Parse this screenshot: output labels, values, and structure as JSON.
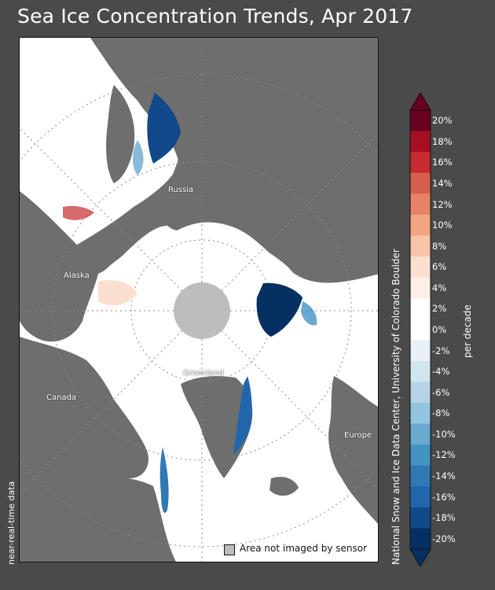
{
  "title": "Sea Ice Concentration Trends, Apr 2017",
  "credit": "National Snow and Ice Data Center, University of Colorado Boulder",
  "data_status": "near-real-time data",
  "map": {
    "labels": [
      "Russia",
      "Alaska",
      "Canada",
      "Greenland",
      "Europe"
    ],
    "legend_label": "Area not imaged by sensor",
    "colors": {
      "land": "#6e6e6e",
      "ice_no_change": "#ffffff",
      "pole_hole": "#bdbdbd",
      "graticule": "#888888"
    }
  },
  "colorbar": {
    "unit": "per decade",
    "tick_labels": [
      "20%",
      "18%",
      "16%",
      "14%",
      "12%",
      "10%",
      "8%",
      "6%",
      "4%",
      "2%",
      "0%",
      "-2%",
      "-4%",
      "-6%",
      "-8%",
      "-10%",
      "-12%",
      "-14%",
      "-16%",
      "-18%",
      "-20%"
    ],
    "colors": [
      "#67001f",
      "#a50f22",
      "#c62b2d",
      "#d6604d",
      "#e58267",
      "#f1a583",
      "#f7c4a8",
      "#fbdfd0",
      "#fdeee6",
      "#ffffff",
      "#ffffff",
      "#e8f1f8",
      "#d1e5f0",
      "#b5d4e9",
      "#92c5de",
      "#6aa9d0",
      "#4393c3",
      "#2f79b5",
      "#2166ac",
      "#11498a",
      "#053061"
    ]
  }
}
